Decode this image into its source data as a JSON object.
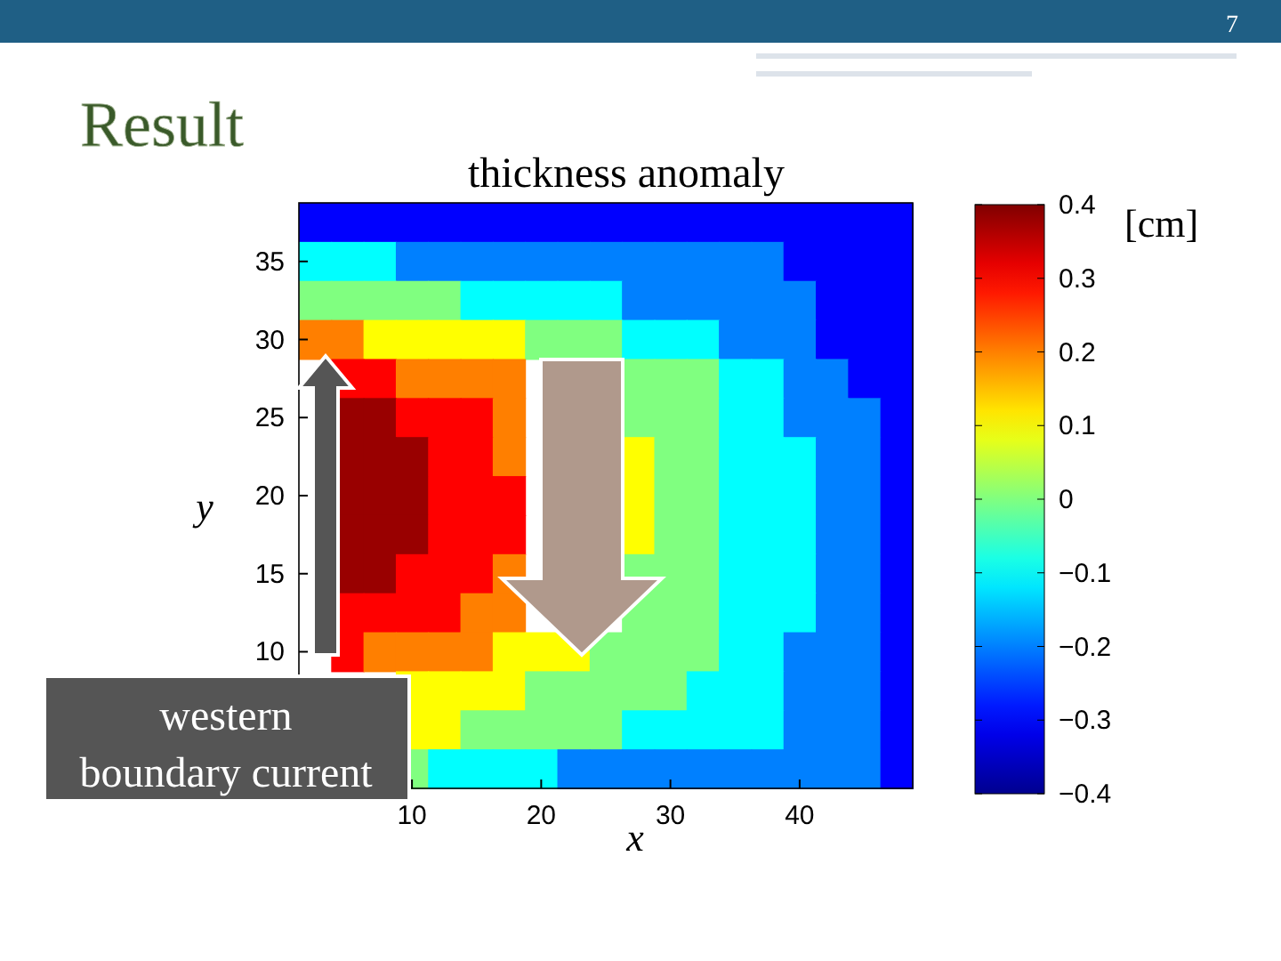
{
  "chart_data": {
    "type": "heatmap",
    "title": "Result",
    "subtitle": "thickness anomaly",
    "xlabel": "x",
    "ylabel": "y",
    "clabel": "[cm]",
    "annotations": [
      "western boundary current",
      "7"
    ],
    "clim": [
      -0.4,
      0.4
    ],
    "cticks": [
      -0.4,
      -0.3,
      -0.2,
      -0.1,
      0,
      0.1,
      0.2,
      0.3,
      0.4
    ],
    "categories": [
      null,
      null,
      null,
      "10",
      null,
      null,
      null,
      "20",
      null,
      null,
      null,
      "30",
      null,
      null,
      null,
      "40",
      null,
      null,
      null
    ],
    "y_categories": [
      null,
      "35",
      null,
      "30",
      null,
      "25",
      null,
      "20",
      null,
      "15",
      null,
      "10",
      null,
      null,
      null
    ],
    "cells": [
      [
        -0.3,
        -0.3,
        -0.3,
        -0.3,
        -0.3,
        -0.3,
        -0.3,
        -0.3,
        -0.3,
        -0.3,
        -0.3,
        -0.3,
        -0.3,
        -0.3,
        -0.3,
        -0.3,
        -0.3,
        -0.3,
        -0.3
      ],
      [
        -0.1,
        -0.1,
        -0.1,
        -0.2,
        -0.2,
        -0.2,
        -0.2,
        -0.2,
        -0.2,
        -0.2,
        -0.2,
        -0.2,
        -0.2,
        -0.2,
        -0.2,
        -0.3,
        -0.3,
        -0.3,
        -0.3
      ],
      [
        0,
        0,
        0,
        0,
        0,
        -0.1,
        -0.1,
        -0.1,
        -0.1,
        -0.1,
        -0.2,
        -0.2,
        -0.2,
        -0.2,
        -0.2,
        -0.2,
        -0.3,
        -0.3,
        -0.3
      ],
      [
        0.2,
        0.2,
        0.1,
        0.1,
        0.1,
        0.1,
        0.1,
        0,
        0,
        0,
        -0.1,
        -0.1,
        -0.1,
        -0.2,
        -0.2,
        -0.2,
        -0.3,
        -0.3,
        -0.3
      ],
      [
        null,
        0.3,
        0.3,
        0.2,
        0.2,
        0.2,
        0.2,
        null,
        null,
        null,
        0,
        0,
        0,
        -0.1,
        -0.1,
        -0.2,
        -0.2,
        -0.3,
        -0.3
      ],
      [
        null,
        0.38,
        0.38,
        0.3,
        0.3,
        0.3,
        0.2,
        null,
        null,
        null,
        0,
        0,
        0,
        -0.1,
        -0.1,
        -0.2,
        -0.2,
        -0.2,
        -0.3
      ],
      [
        null,
        0.38,
        0.38,
        0.38,
        0.3,
        0.3,
        0.2,
        null,
        null,
        null,
        0.1,
        0,
        0,
        -0.1,
        -0.1,
        -0.1,
        -0.2,
        -0.2,
        -0.3
      ],
      [
        null,
        0.38,
        0.38,
        0.38,
        0.3,
        0.3,
        0.3,
        null,
        null,
        null,
        0.1,
        0,
        0,
        -0.1,
        -0.1,
        -0.1,
        -0.2,
        -0.2,
        -0.3
      ],
      [
        null,
        0.38,
        0.38,
        0.38,
        0.3,
        0.3,
        0.3,
        null,
        null,
        null,
        0.1,
        0,
        0,
        -0.1,
        -0.1,
        -0.1,
        -0.2,
        -0.2,
        -0.3
      ],
      [
        null,
        0.38,
        0.38,
        0.3,
        0.3,
        0.3,
        0.2,
        null,
        null,
        null,
        0,
        0,
        0,
        -0.1,
        -0.1,
        -0.1,
        -0.2,
        -0.2,
        -0.3
      ],
      [
        null,
        0.3,
        0.3,
        0.3,
        0.3,
        0.2,
        0.2,
        null,
        null,
        null,
        0,
        0,
        0,
        -0.1,
        -0.1,
        -0.1,
        -0.2,
        -0.2,
        -0.3
      ],
      [
        null,
        0.3,
        0.2,
        0.2,
        0.2,
        0.2,
        0.1,
        0.1,
        0.1,
        0,
        0,
        0,
        0,
        -0.1,
        -0.1,
        -0.2,
        -0.2,
        -0.2,
        -0.3
      ],
      [
        null,
        null,
        null,
        0.1,
        0.1,
        0.1,
        0.1,
        0,
        0,
        0,
        0,
        0,
        -0.1,
        -0.1,
        -0.1,
        -0.2,
        -0.2,
        -0.2,
        -0.3
      ],
      [
        null,
        null,
        null,
        0.1,
        0.1,
        0,
        0,
        0,
        0,
        0,
        -0.1,
        -0.1,
        -0.1,
        -0.1,
        -0.1,
        -0.2,
        -0.2,
        -0.2,
        -0.3
      ],
      [
        null,
        null,
        null,
        0,
        -0.1,
        -0.1,
        -0.1,
        -0.1,
        -0.2,
        -0.2,
        -0.2,
        -0.2,
        -0.2,
        -0.2,
        -0.2,
        -0.2,
        -0.2,
        -0.2,
        -0.3
      ]
    ]
  }
}
